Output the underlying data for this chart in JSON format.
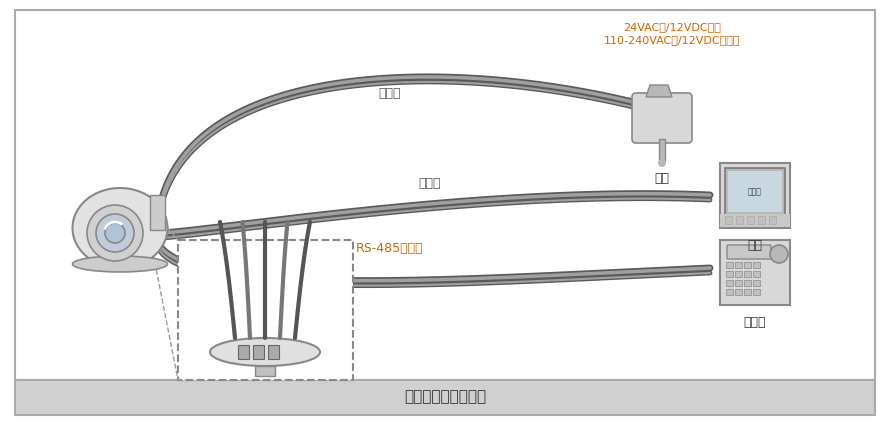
{
  "bg_color": "#ffffff",
  "border_color": "#aaaaaa",
  "footer_bg": "#d0d0d0",
  "wire_dark": "#5a5a5a",
  "wire_mid": "#787878",
  "wire_light": "#a0a0a0",
  "device_fill": "#d8d8d8",
  "device_edge": "#888888",
  "device_dark": "#b8b8b8",
  "annotation_color": "#cc6600",
  "label_color": "#555555",
  "label_power": "电源线",
  "label_video": "视频线",
  "label_rs485": "RS-485控制线",
  "label_power_device": "电源",
  "label_video_device": "视频",
  "label_controller": "控制器",
  "annotation_line1": "24VAC进/12VDC出或",
  "annotation_line2": "110-240VAC进/12VDC出可选",
  "footer_text": "外部接线系统连接图"
}
